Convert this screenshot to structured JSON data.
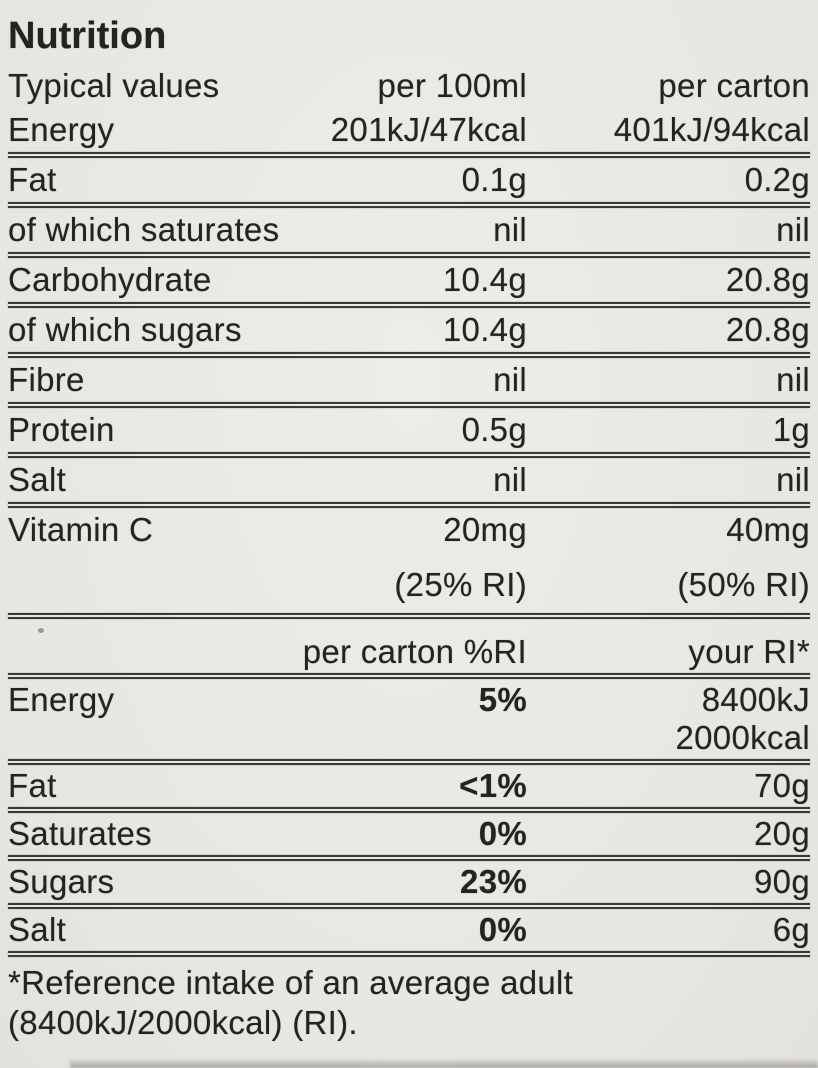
{
  "title": "Nutrition",
  "colors": {
    "background": "#e9e8e3",
    "text": "#24231f",
    "line": "#3a3933"
  },
  "table_per_serving": {
    "header": {
      "col1": "Typical values",
      "col2": "per 100ml",
      "col3": "per carton"
    },
    "rows": [
      {
        "label": "Energy",
        "per_100ml": "201kJ/47kcal",
        "per_carton": "401kJ/94kcal"
      },
      {
        "label": "Fat",
        "per_100ml": "0.1g",
        "per_carton": "0.2g"
      },
      {
        "label": "of which saturates",
        "per_100ml": "nil",
        "per_carton": "nil"
      },
      {
        "label": "Carbohydrate",
        "per_100ml": "10.4g",
        "per_carton": "20.8g"
      },
      {
        "label": "of which sugars",
        "per_100ml": "10.4g",
        "per_carton": "20.8g"
      },
      {
        "label": "Fibre",
        "per_100ml": "nil",
        "per_carton": "nil"
      },
      {
        "label": "Protein",
        "per_100ml": "0.5g",
        "per_carton": "1g"
      },
      {
        "label": "Salt",
        "per_100ml": "nil",
        "per_carton": "nil"
      },
      {
        "label": "Vitamin C",
        "per_100ml": "20mg",
        "per_carton": "40mg",
        "per_100ml_note": "(25% RI)",
        "per_carton_note": "(50% RI)"
      }
    ]
  },
  "table_ri": {
    "header": {
      "col2": "per carton %RI",
      "col3": "your RI*"
    },
    "rows": [
      {
        "label": "Energy",
        "percent": "5%",
        "ri": "8400kJ",
        "ri_line2": "2000kcal"
      },
      {
        "label": "Fat",
        "percent": "<1%",
        "ri": "70g"
      },
      {
        "label": "Saturates",
        "percent": "0%",
        "ri": "20g"
      },
      {
        "label": "Sugars",
        "percent": "23%",
        "ri": "90g"
      },
      {
        "label": "Salt",
        "percent": "0%",
        "ri": "6g"
      }
    ]
  },
  "footnote": {
    "line1": "*Reference intake of an average adult",
    "line2": "(8400kJ/2000kcal) (RI)."
  }
}
